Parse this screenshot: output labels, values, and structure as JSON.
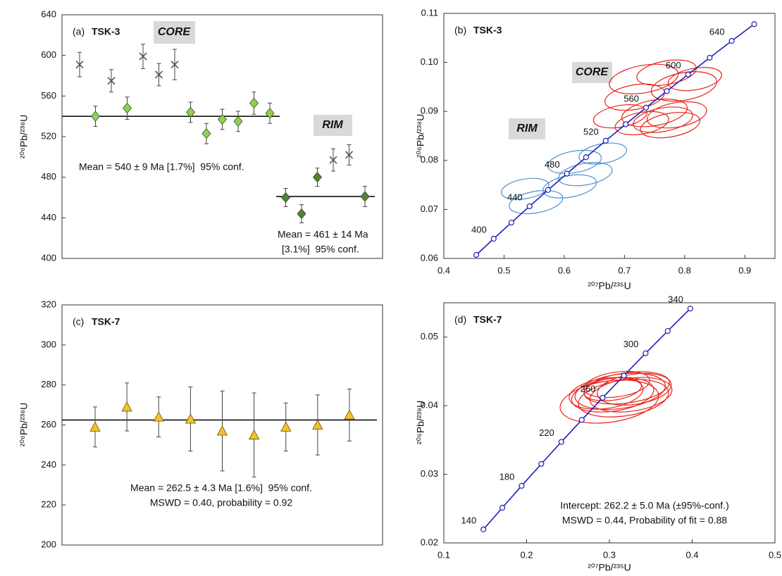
{
  "chart_data": [
    {
      "type": "errorbar",
      "label": "(a)",
      "title": "TSK-3",
      "ylabel": "²⁰⁶Pb/²³⁸U",
      "ylim": [
        400,
        640
      ],
      "yticks": [
        400,
        440,
        480,
        520,
        560,
        600,
        640
      ],
      "categories": [
        null,
        null,
        null,
        null,
        null,
        null,
        null,
        null,
        null,
        null,
        null,
        null,
        null,
        null,
        null,
        null,
        null,
        null,
        null
      ],
      "series": [
        {
          "marker": "cross",
          "color": "#555555",
          "values": [
            591,
            null,
            575,
            null,
            599,
            581,
            591,
            null,
            null,
            null,
            null,
            null,
            null,
            null,
            null,
            null,
            497,
            502,
            null
          ],
          "errors": [
            12,
            null,
            11,
            null,
            12,
            11,
            15,
            null,
            null,
            null,
            null,
            null,
            null,
            null,
            null,
            null,
            11,
            10,
            null
          ]
        },
        {
          "marker": "diamond",
          "color": "#92d050",
          "values": [
            null,
            540,
            null,
            548,
            null,
            null,
            null,
            544,
            523,
            537,
            535,
            553,
            543,
            null,
            null,
            null,
            null,
            null,
            null
          ],
          "errors": [
            null,
            10,
            null,
            11,
            null,
            null,
            null,
            10,
            10,
            10,
            10,
            11,
            10,
            null,
            null,
            null,
            null,
            null,
            null
          ]
        },
        {
          "marker": "diamond",
          "color": "#548235",
          "values": [
            null,
            null,
            null,
            null,
            null,
            null,
            null,
            null,
            null,
            null,
            null,
            null,
            null,
            460,
            444,
            480,
            null,
            null,
            461
          ],
          "errors": [
            null,
            null,
            null,
            null,
            null,
            null,
            null,
            null,
            null,
            null,
            null,
            null,
            null,
            9,
            9,
            9,
            null,
            null,
            10
          ]
        }
      ],
      "mean_lines": [
        540,
        461
      ],
      "annotations": [
        "CORE",
        "RIM",
        "Mean = 540 ± 9 Ma [1.7%]  95% conf.",
        "Mean = 461 ± 14 Ma",
        "[3.1%]  95% conf."
      ]
    },
    {
      "type": "concordia",
      "label": "(b)",
      "title": "TSK-3",
      "xlabel": "²⁰⁷Pb/²³⁵U",
      "ylabel": "²⁰⁶Pb/²³⁸U",
      "xlim": [
        0.4,
        0.95
      ],
      "xticks": [
        0.4,
        0.5,
        0.6,
        0.7,
        0.8,
        0.9
      ],
      "ylim": [
        0.06,
        0.11
      ],
      "yticks": [
        0.06,
        0.07,
        0.08,
        0.09,
        {
          "value": 0.1,
          "label": "0.10"
        },
        0.11
      ],
      "line_color": "#1f1fb4",
      "concordia": {
        "x": [
          0.45389,
          0.4828,
          0.5123,
          0.54239,
          0.57307,
          0.60437,
          0.63628,
          0.66883,
          0.70203,
          0.73589,
          0.77042,
          0.80564,
          0.84155,
          0.87818,
          0.91554
        ],
        "y": [
          0.06072,
          0.06402,
          0.06732,
          0.07064,
          0.07397,
          0.0773,
          0.08065,
          0.08401,
          0.08738,
          0.09076,
          0.09414,
          0.09754,
          0.10095,
          0.10438,
          0.10781
        ],
        "labels": [
          null,
          400,
          null,
          440,
          null,
          480,
          null,
          520,
          null,
          560,
          null,
          600,
          null,
          640,
          null
        ]
      },
      "ellipses": [
        {
          "color": "#e8231b",
          "x": [
            0.732,
            0.77,
            0.799,
            0.817,
            0.717,
            0.75,
            0.776,
            0.787,
            0.729,
            0.764,
            0.693
          ],
          "y": [
            0.0966,
            0.0979,
            0.0951,
            0.0966,
            0.0929,
            0.0897,
            0.0872,
            0.0893,
            0.0876,
            0.0883,
            0.089
          ],
          "x_err": [
            0.058,
            0.05,
            0.055,
            0.045,
            0.05,
            0.055,
            0.05,
            0.05,
            0.045,
            0.05,
            0.045
          ],
          "y_err": [
            0.0028,
            0.0024,
            0.0028,
            0.0022,
            0.0025,
            0.0026,
            0.0024,
            0.0025,
            0.0022,
            0.0024,
            0.0022
          ]
        },
        {
          "color": "#4a90d0",
          "x": [
            0.617,
            0.664,
            0.635,
            0.609,
            0.535,
            0.553
          ],
          "y": [
            0.0797,
            0.0814,
            0.0772,
            0.0747,
            0.0742,
            0.0715
          ],
          "x_err": [
            0.045,
            0.04,
            0.045,
            0.045,
            0.04,
            0.045
          ],
          "y_err": [
            0.0022,
            0.002,
            0.0022,
            0.0022,
            0.002,
            0.0022
          ]
        }
      ],
      "annotations": [
        "CORE",
        "RIM"
      ]
    },
    {
      "type": "errorbar",
      "label": "(c)",
      "title": "TSK-7",
      "ylabel": "²⁰⁶Pb/²³⁸U",
      "ylim": [
        200,
        320
      ],
      "yticks": [
        200,
        220,
        240,
        260,
        280,
        300,
        320
      ],
      "categories": [
        null,
        null,
        null,
        null,
        null,
        null,
        null,
        null,
        null
      ],
      "series": [
        {
          "marker": "triangle",
          "color": "#f2c12e",
          "values": [
            259,
            269,
            264,
            263,
            257,
            255,
            259,
            260,
            265
          ],
          "errors": [
            10,
            12,
            10,
            16,
            20,
            21,
            12,
            15,
            13
          ]
        }
      ],
      "mean_lines": [
        262.5
      ],
      "annotations": [
        "Mean = 262.5 ± 4.3 Ma [1.6%]  95% conf.",
        "MSWD = 0.40, probability = 0.92"
      ]
    },
    {
      "type": "concordia",
      "label": "(d)",
      "title": "TSK-7",
      "xlabel": "²⁰⁷Pb/²³⁵U",
      "ylabel": "²⁰⁶Pb/²³⁸U",
      "xlim": [
        0.1,
        0.5
      ],
      "xticks": [
        0.1,
        0.2,
        0.3,
        0.4,
        0.5
      ],
      "ylim": [
        0.02,
        0.055
      ],
      "yticks": [
        0.02,
        0.03,
        0.04,
        0.05
      ],
      "line_color": "#1f1fb4",
      "concordia": {
        "x": [
          0.14784,
          0.17067,
          0.19396,
          0.21771,
          0.24193,
          0.26664,
          0.29182,
          0.31753,
          0.34374,
          0.37047,
          0.39773
        ],
        "y": [
          0.02196,
          0.02513,
          0.02832,
          0.03151,
          0.03472,
          0.03793,
          0.04116,
          0.04439,
          0.04764,
          0.05089,
          0.05416
        ],
        "labels": [
          140,
          null,
          180,
          null,
          220,
          null,
          260,
          null,
          300,
          null,
          340
        ]
      },
      "ellipses": [
        {
          "color": "#e8231b",
          "x": [
            0.313,
            0.304,
            0.321,
            0.3,
            0.33,
            0.309,
            0.296,
            0.317,
            0.326,
            0.304
          ],
          "y": [
            0.0421,
            0.0416,
            0.0426,
            0.0406,
            0.0424,
            0.0431,
            0.0418,
            0.0411,
            0.0416,
            0.0424
          ],
          "x_err": [
            0.055,
            0.05,
            0.052,
            0.06,
            0.045,
            0.04,
            0.045,
            0.055,
            0.05,
            0.035
          ],
          "y_err": [
            0.0025,
            0.0024,
            0.0022,
            0.003,
            0.0022,
            0.0018,
            0.0022,
            0.0026,
            0.0024,
            0.0016
          ]
        }
      ],
      "annotations": [
        "Intercept: 262.2 ± 5.0 Ma (±95%-conf.)",
        "MSWD = 0.44, Probability of fit = 0.88"
      ]
    }
  ]
}
